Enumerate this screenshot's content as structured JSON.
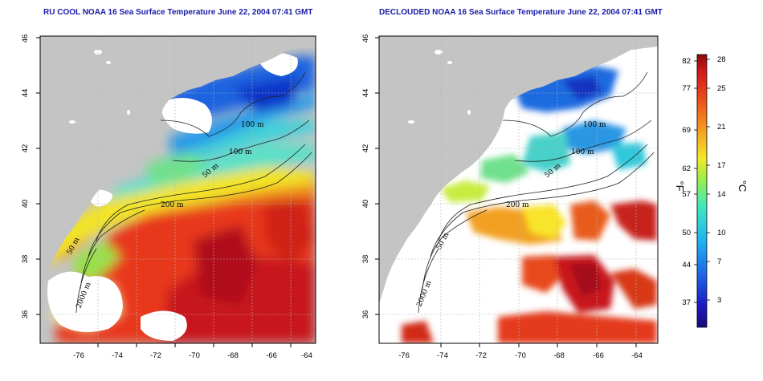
{
  "left_panel": {
    "title": "RU COOL NOAA 16 Sea Surface Temperature June 22, 2004 07:41 GMT",
    "contour_labels": [
      "100 m",
      "100 m",
      "50 m",
      "200 m",
      "50 m",
      "2000 m"
    ]
  },
  "right_panel": {
    "title": "DECLOUDED NOAA 16 Sea Surface Temperature June 22, 2004 07:41 GMT",
    "contour_labels": [
      "100 m",
      "100 m",
      "50 m",
      "200 m",
      "50 m",
      "2000 m"
    ]
  },
  "axes": {
    "x_ticks": [
      "-76",
      "-74",
      "-72",
      "-70",
      "-68",
      "-66",
      "-64"
    ],
    "y_ticks": [
      "46",
      "44",
      "42",
      "40",
      "38",
      "36"
    ]
  },
  "colorbar": {
    "left_unit": "°F",
    "right_unit": "°C",
    "f_ticks": [
      "82",
      "77",
      "69",
      "62",
      "57",
      "50",
      "44",
      "37"
    ],
    "c_ticks": [
      "28",
      "25",
      "21",
      "17",
      "14",
      "10",
      "7",
      "3"
    ]
  },
  "colors": {
    "land": "#c4c4c4",
    "cloud": "#ffffff",
    "title": "#1a1aa6"
  }
}
